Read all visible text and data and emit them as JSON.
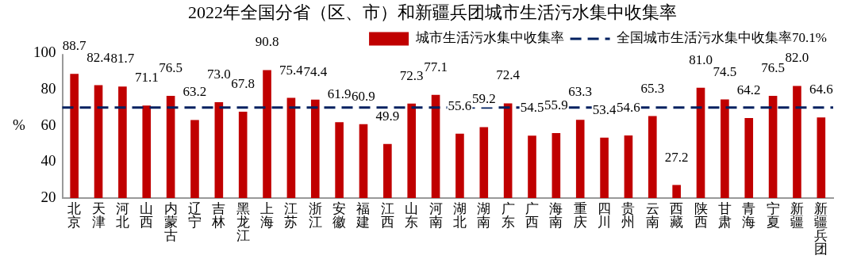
{
  "chart_data": {
    "type": "bar",
    "title": "2022年全国分省（区、市）和新疆兵团城市生活污水集中收集率",
    "ylabel": "%",
    "categories": [
      "北京",
      "天津",
      "河北",
      "山西",
      "内蒙古",
      "辽宁",
      "吉林",
      "黑龙江",
      "上海",
      "江苏",
      "浙江",
      "安徽",
      "福建",
      "江西",
      "山东",
      "河南",
      "湖北",
      "湖南",
      "广东",
      "广西",
      "海南",
      "重庆",
      "四川",
      "贵州",
      "云南",
      "西藏",
      "陕西",
      "甘肃",
      "青海",
      "宁夏",
      "新疆",
      "新疆兵团"
    ],
    "series": [
      {
        "name": "城市生活污水集中收集率",
        "color": "#c00000",
        "values": [
          88.7,
          82.4,
          81.7,
          71.1,
          76.5,
          63.2,
          73.0,
          67.8,
          90.8,
          75.4,
          74.4,
          61.9,
          60.9,
          49.9,
          72.3,
          77.1,
          55.6,
          59.2,
          72.4,
          54.5,
          55.9,
          63.3,
          53.4,
          54.6,
          65.3,
          27.2,
          81.0,
          74.5,
          64.2,
          76.5,
          82.0,
          64.6
        ],
        "value_labels": [
          "88.7",
          "82.4",
          "81.7",
          "71.1",
          "76.5",
          "63.2",
          "73.0",
          "67.8",
          "90.8",
          "75.4",
          "74.4",
          "61.9",
          "60.9",
          "49.9",
          "72.3",
          "77.1",
          "55.6",
          "59.2",
          "72.4",
          "54.5",
          "55.9",
          "63.3",
          "53.4",
          "54.6",
          "65.3",
          "27.2",
          "81.0",
          "74.5",
          "64.2",
          "76.5",
          "82.0",
          "64.6"
        ]
      }
    ],
    "ylim": [
      20,
      100
    ],
    "yticks": [
      20,
      40,
      60,
      80,
      100
    ],
    "ref_lines": [
      {
        "axis": "y",
        "value": 70.1,
        "label": "全国城市生活污水集中收集率70.1%",
        "color": "#002060",
        "line_style": "dashed"
      }
    ],
    "grid": false,
    "legend": "top right"
  }
}
